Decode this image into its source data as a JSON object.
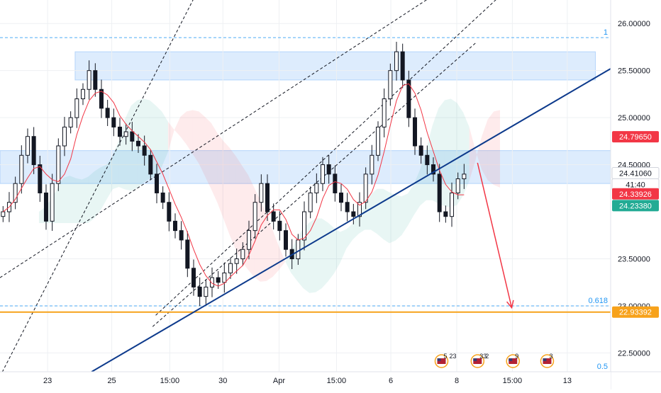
{
  "chart_data": {
    "type": "candlestick",
    "xlim": [
      0,
      100
    ],
    "ylim": [
      22.3,
      26.25
    ],
    "y_ticks": [
      "26.00000",
      "25.50000",
      "25.00000",
      "24.50000",
      "23.50000",
      "23.00000",
      "22.50000"
    ],
    "y_tick_values": [
      26.0,
      25.5,
      25.0,
      24.5,
      23.5,
      23.0,
      22.5
    ],
    "x_ticks": [
      {
        "label": "23",
        "x": 7.8
      },
      {
        "label": "25",
        "x": 18.3
      },
      {
        "label": "15:00",
        "x": 27.8
      },
      {
        "label": "30",
        "x": 36.5
      },
      {
        "label": "Apr",
        "x": 45.7
      },
      {
        "label": "15:00",
        "x": 55.1
      },
      {
        "label": "6",
        "x": 64.0
      },
      {
        "label": "8",
        "x": 74.8
      },
      {
        "label": "15:00",
        "x": 83.9
      },
      {
        "label": "13",
        "x": 92.9
      }
    ],
    "price_badges": [
      {
        "label": "24.79650",
        "value": 24.7965,
        "color": "#f23645"
      },
      {
        "label": "24.41060",
        "value": 24.4106,
        "color": "#ffffff"
      },
      {
        "label": "41:40",
        "value": 24.29,
        "color": "#ffffff"
      },
      {
        "label": "24.33926",
        "value": 24.19,
        "color": "#f23645"
      },
      {
        "label": "24.23380",
        "value": 24.065,
        "color": "#22ab94"
      },
      {
        "label": "22.93392",
        "value": 22.93392,
        "color": "#f7a21b"
      }
    ],
    "fib_levels": [
      {
        "label": "1",
        "value": 25.85
      },
      {
        "label": "0.618",
        "value": 23.0
      },
      {
        "label": "0.5",
        "value": 22.3
      }
    ],
    "support_line": 22.93392,
    "supply_zones": [
      {
        "x": [
          12.3,
          97.5
        ],
        "y": [
          25.4,
          25.7
        ]
      },
      {
        "x": [
          0,
          100
        ],
        "y": [
          24.3,
          24.65
        ]
      }
    ],
    "trendline": {
      "from": [
        15.0,
        22.3
      ],
      "to": [
        100,
        25.52
      ]
    },
    "channel_lines": [
      {
        "from": [
          0,
          22.25
        ],
        "to": [
          32.0,
          26.3
        ]
      },
      {
        "from": [
          0,
          23.3
        ],
        "to": [
          71.0,
          26.3
        ]
      },
      {
        "from": [
          25.5,
          22.9
        ],
        "to": [
          82.0,
          26.3
        ]
      },
      {
        "from": [
          25.0,
          22.78
        ],
        "to": [
          78.0,
          25.8
        ]
      }
    ],
    "projection_arrow": {
      "from": [
        78.2,
        24.52
      ],
      "to": [
        83.8,
        22.98
      ]
    },
    "close": [
      24.0,
      24.1,
      24.3,
      24.6,
      24.8,
      24.5,
      24.2,
      23.9,
      24.3,
      24.7,
      24.9,
      25.0,
      25.2,
      25.3,
      25.5,
      25.3,
      25.1,
      25.0,
      24.9,
      24.8,
      24.85,
      24.75,
      24.7,
      24.6,
      24.4,
      24.2,
      24.1,
      23.9,
      23.8,
      23.7,
      23.4,
      23.2,
      23.1,
      23.2,
      23.3,
      23.25,
      23.35,
      23.45,
      23.5,
      23.6,
      23.8,
      24.1,
      24.3,
      24.0,
      23.9,
      23.8,
      23.6,
      23.5,
      23.7,
      24.0,
      24.2,
      24.3,
      24.5,
      24.4,
      24.2,
      24.1,
      24.0,
      23.95,
      24.1,
      24.4,
      24.6,
      24.9,
      25.2,
      25.5,
      25.7,
      25.4,
      25.0,
      24.7,
      24.6,
      24.5,
      24.4,
      24.0,
      23.95,
      24.2,
      24.35,
      24.4
    ],
    "annotations": [
      "5",
      "23",
      "33",
      "2",
      "9",
      "3"
    ]
  }
}
